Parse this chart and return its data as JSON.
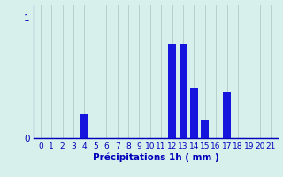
{
  "values": [
    0,
    0,
    0,
    0,
    0.2,
    0,
    0,
    0,
    0,
    0,
    0,
    0,
    0.78,
    0.78,
    0.42,
    0.15,
    0,
    0.38,
    0,
    0,
    0,
    0
  ],
  "categories": [
    0,
    1,
    2,
    3,
    4,
    5,
    6,
    7,
    8,
    9,
    10,
    11,
    12,
    13,
    14,
    15,
    16,
    17,
    18,
    19,
    20,
    21
  ],
  "bar_color": "#1515dd",
  "background_color": "#d8f0ec",
  "grid_color": "#b8d0cc",
  "axis_color": "#0000bb",
  "tick_color": "#0000bb",
  "xlabel": "Précipitations 1h ( mm )",
  "ylim": [
    0,
    1.1
  ],
  "yticks": [
    0,
    1
  ],
  "xlabel_fontsize": 7.5,
  "tick_fontsize": 6.5
}
